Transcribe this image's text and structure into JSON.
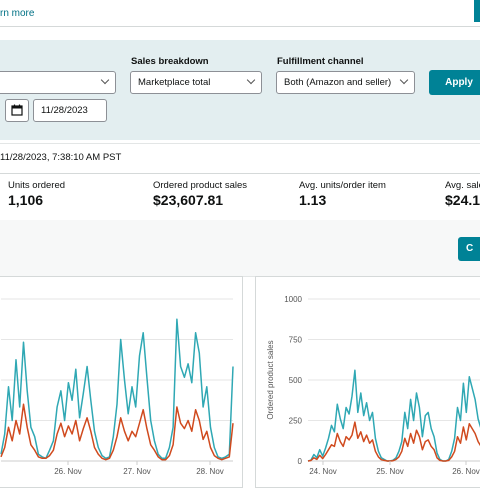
{
  "banner": {
    "learn_more": "rn more"
  },
  "filters": {
    "sales_breakdown_label": "Sales breakdown",
    "sales_breakdown_value": "Marketplace total",
    "fulfillment_label": "Fulfillment channel",
    "fulfillment_value": "Both (Amazon and seller)",
    "apply_label": "Apply",
    "end_date": "11/28/2023",
    "calendar_icon": "calendar-icon"
  },
  "timestamp": "11/28/2023, 7:38:10 AM PST",
  "metrics": [
    {
      "label": "Units ordered",
      "value": "1,106"
    },
    {
      "label": "Ordered product sales",
      "value": "$23,607.81"
    },
    {
      "label": "Avg. units/order item",
      "value": "1.13"
    },
    {
      "label": "Avg. sale",
      "value": "$24.1"
    }
  ],
  "toolbar": {
    "partial_button_label": "C"
  },
  "colors": {
    "teal": "#008296",
    "units_line": "#2fa8b4",
    "sales_line": "#d04a1e",
    "panel": "#e3eef0"
  },
  "chart_data": [
    {
      "type": "line",
      "x_ticks": [
        "26. Nov",
        "27. Nov",
        "28. Nov"
      ],
      "series": [
        {
          "values": [
            5,
            20,
            55,
            30,
            75,
            40,
            88,
            52,
            25,
            18,
            5,
            3,
            2,
            8,
            15,
            40,
            52,
            30,
            58,
            45,
            68,
            32,
            50,
            70,
            45,
            22,
            10,
            4,
            2,
            3,
            18,
            42,
            90,
            60,
            35,
            55,
            40,
            78,
            95,
            62,
            30,
            15,
            5,
            2,
            2,
            10,
            25,
            105,
            70,
            62,
            72,
            58,
            95,
            80,
            40,
            55,
            25,
            10,
            3,
            2,
            3,
            5,
            70
          ]
        },
        {
          "values": [
            3,
            10,
            25,
            15,
            30,
            20,
            42,
            25,
            12,
            8,
            3,
            2,
            2,
            4,
            8,
            20,
            28,
            18,
            26,
            20,
            30,
            15,
            24,
            32,
            22,
            10,
            5,
            2,
            1,
            2,
            8,
            18,
            32,
            22,
            15,
            22,
            18,
            28,
            38,
            24,
            12,
            8,
            3,
            1,
            1,
            4,
            12,
            40,
            28,
            24,
            30,
            22,
            38,
            30,
            16,
            22,
            10,
            4,
            2,
            1,
            2,
            3,
            28
          ]
        }
      ]
    },
    {
      "type": "line",
      "ylabel": "Ordered product sales",
      "y_ticks": [
        "0",
        "250",
        "500",
        "750",
        "1000"
      ],
      "ylim": [
        0,
        1000
      ],
      "x_ticks": [
        "24. Nov",
        "25. Nov",
        "26. Nov"
      ],
      "series": [
        {
          "values": [
            0,
            5,
            40,
            20,
            70,
            30,
            80,
            140,
            220,
            180,
            350,
            260,
            200,
            330,
            290,
            400,
            560,
            300,
            420,
            280,
            360,
            250,
            300,
            140,
            60,
            20,
            10,
            0,
            0,
            5,
            20,
            60,
            120,
            300,
            200,
            380,
            250,
            420,
            330,
            150,
            280,
            300,
            200,
            150,
            50,
            10,
            0,
            0,
            10,
            60,
            140,
            330,
            250,
            480,
            300,
            520,
            450,
            380,
            260,
            200
          ]
        },
        {
          "values": [
            0,
            3,
            20,
            10,
            35,
            15,
            40,
            70,
            100,
            90,
            170,
            120,
            90,
            150,
            130,
            160,
            240,
            140,
            180,
            120,
            160,
            110,
            130,
            60,
            25,
            8,
            4,
            0,
            0,
            2,
            10,
            25,
            60,
            140,
            90,
            170,
            110,
            190,
            150,
            70,
            120,
            130,
            90,
            70,
            20,
            4,
            0,
            0,
            4,
            25,
            60,
            150,
            110,
            210,
            130,
            230,
            200,
            170,
            120,
            90
          ]
        }
      ]
    }
  ]
}
